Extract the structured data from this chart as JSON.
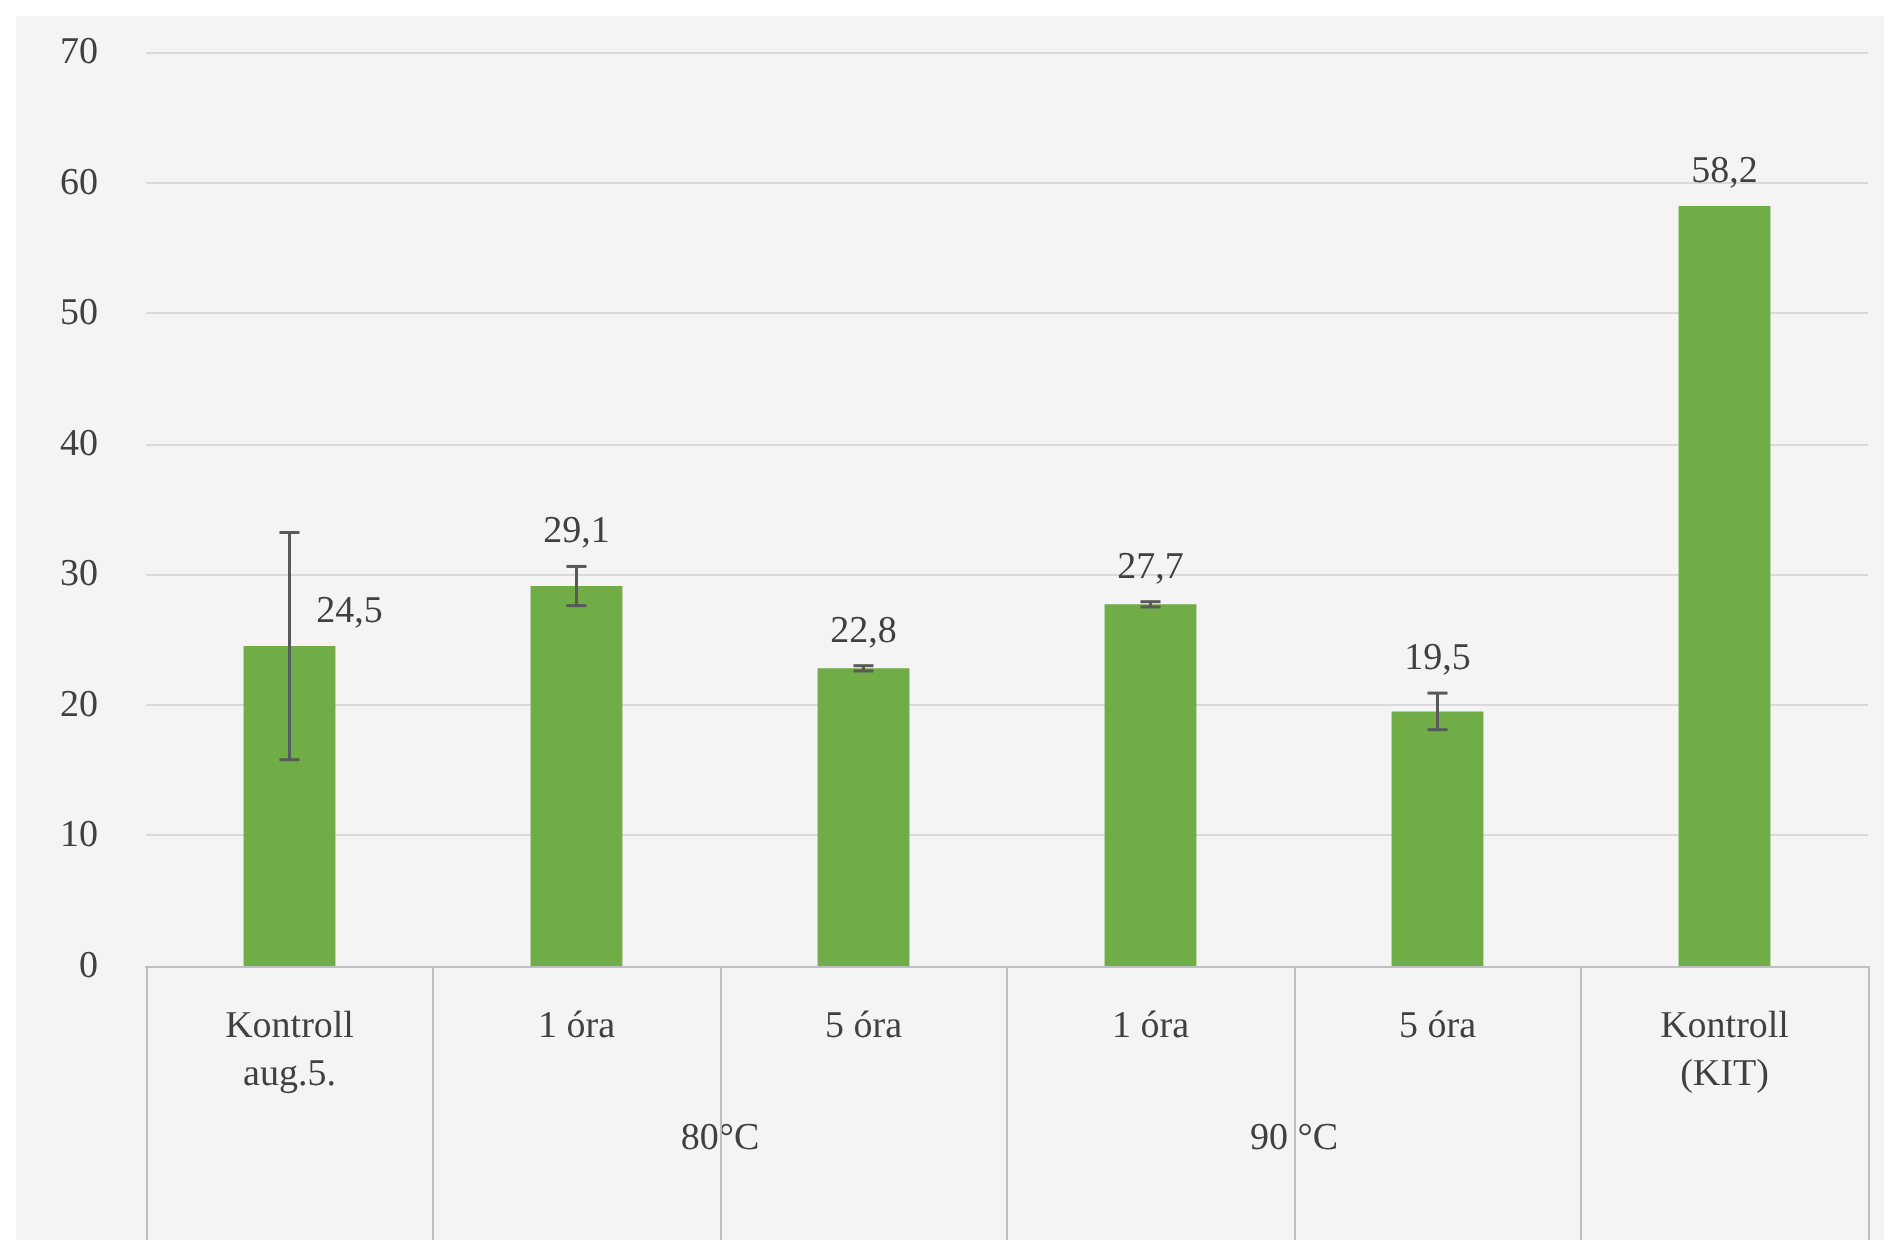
{
  "chart_data": {
    "type": "bar",
    "categories": [
      "Kontroll\naug.5.",
      "1 óra",
      "5 óra",
      "1 óra",
      "5 óra",
      "Kontroll\n(KIT)"
    ],
    "values": [
      24.5,
      29.1,
      22.8,
      27.7,
      19.5,
      58.2
    ],
    "value_labels": [
      "24,5",
      "29,1",
      "22,8",
      "27,7",
      "19,5",
      "58,2"
    ],
    "errors": [
      8.7,
      1.5,
      0.2,
      0.2,
      1.4,
      null
    ],
    "color": "#70ad47",
    "annotations": [
      "80°C",
      "90 °C"
    ],
    "ylim": [
      0,
      70
    ],
    "yticks": [
      0,
      10,
      20,
      30,
      40,
      50,
      60,
      70
    ],
    "grid": "y"
  }
}
